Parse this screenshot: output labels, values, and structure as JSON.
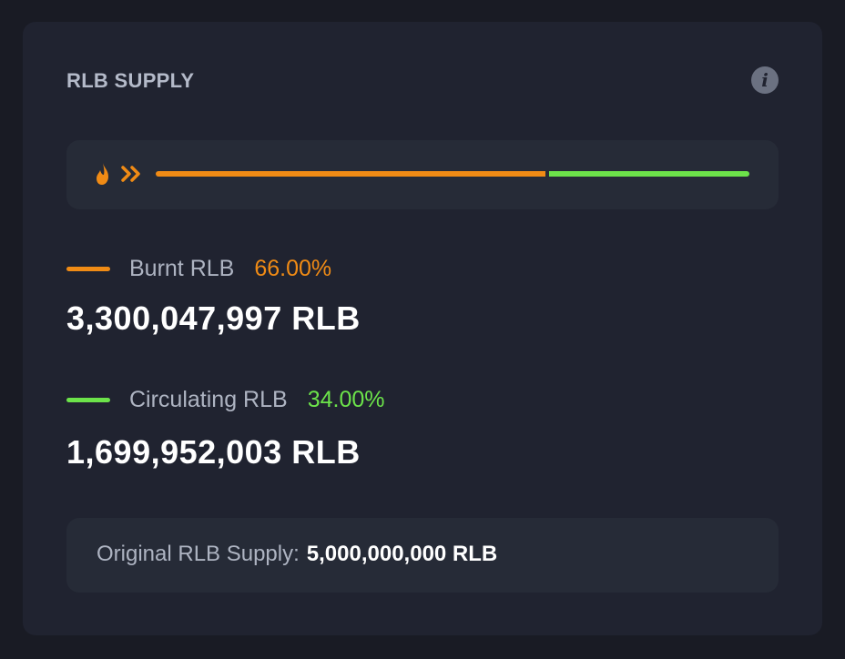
{
  "card": {
    "title": "RLB SUPPLY",
    "info_icon": "info-icon"
  },
  "bar": {
    "flame_icon": "flame-icon",
    "chevrons_icon": "double-chevron-right-icon",
    "burnt_fraction": 0.66,
    "circulating_fraction": 0.34
  },
  "burnt": {
    "label": "Burnt RLB",
    "percent": "66.00%",
    "amount": "3,300,047,997 RLB",
    "color": "#f08b15"
  },
  "circulating": {
    "label": "Circulating RLB",
    "percent": "34.00%",
    "amount": "1,699,952,003 RLB",
    "color": "#6ce34a"
  },
  "original": {
    "label": "Original RLB Supply:",
    "value": "5,000,000,000 RLB"
  },
  "colors": {
    "background": "#191b24",
    "card": "#202330",
    "inner_box": "#262b37",
    "muted_text": "#aeb4c2"
  }
}
